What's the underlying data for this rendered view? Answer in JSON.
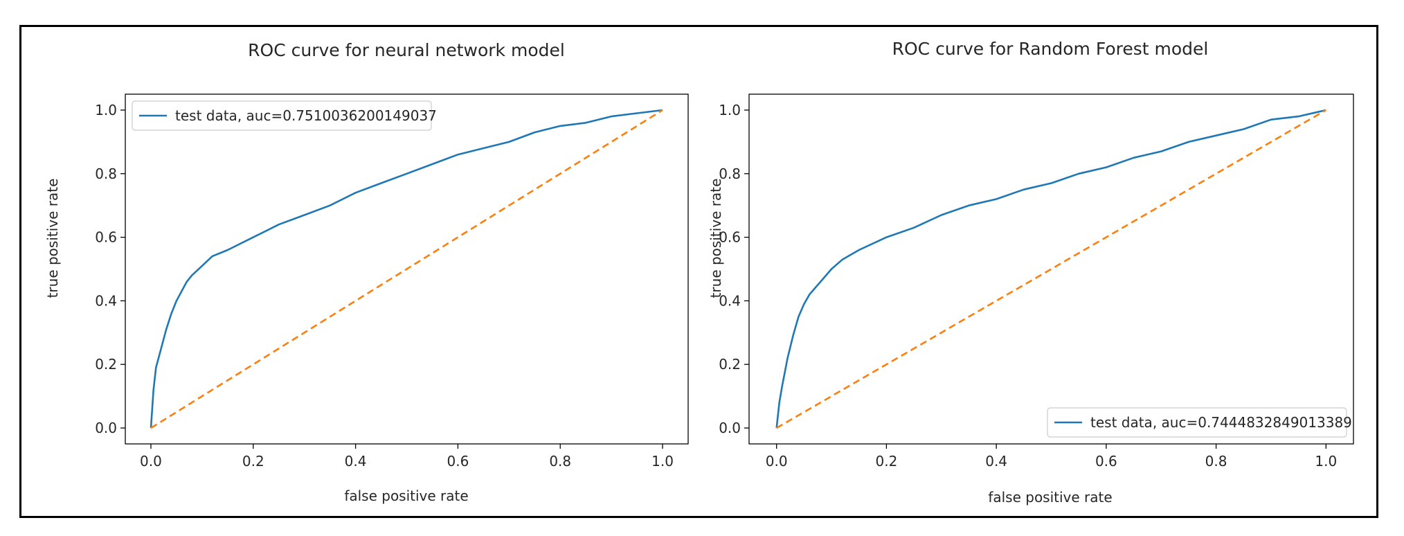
{
  "chart_data": [
    {
      "type": "line",
      "title": "ROC curve for neural network model",
      "xlabel": "false positive rate",
      "ylabel": "true positive rate",
      "xlim": [
        -0.05,
        1.05
      ],
      "ylim": [
        -0.05,
        1.05
      ],
      "xticks": [
        "0.0",
        "0.2",
        "0.4",
        "0.6",
        "0.8",
        "1.0"
      ],
      "yticks": [
        "0.0",
        "0.2",
        "0.4",
        "0.6",
        "0.8",
        "1.0"
      ],
      "grid": false,
      "legend_position": "upper left",
      "colors": {
        "roc": "#1f77b4",
        "diagonal": "#ff7f0e"
      },
      "series": [
        {
          "name": "test data, auc=0.7510036200149037",
          "x": [
            0.0,
            0.005,
            0.01,
            0.02,
            0.03,
            0.04,
            0.05,
            0.06,
            0.07,
            0.08,
            0.1,
            0.12,
            0.15,
            0.2,
            0.25,
            0.3,
            0.35,
            0.4,
            0.45,
            0.5,
            0.55,
            0.6,
            0.65,
            0.7,
            0.75,
            0.8,
            0.85,
            0.9,
            0.95,
            1.0
          ],
          "y": [
            0.0,
            0.12,
            0.19,
            0.25,
            0.31,
            0.36,
            0.4,
            0.43,
            0.46,
            0.48,
            0.51,
            0.54,
            0.56,
            0.6,
            0.64,
            0.67,
            0.7,
            0.74,
            0.77,
            0.8,
            0.83,
            0.86,
            0.88,
            0.9,
            0.93,
            0.95,
            0.96,
            0.98,
            0.99,
            1.0
          ]
        },
        {
          "x": [
            0.0,
            1.0
          ],
          "y": [
            0.0,
            1.0
          ],
          "dashed": true
        }
      ]
    },
    {
      "type": "line",
      "title": "ROC curve for Random Forest model",
      "xlabel": "false positive rate",
      "ylabel": "true positive rate",
      "xlim": [
        -0.05,
        1.05
      ],
      "ylim": [
        -0.05,
        1.05
      ],
      "xticks": [
        "0.0",
        "0.2",
        "0.4",
        "0.6",
        "0.8",
        "1.0"
      ],
      "yticks": [
        "0.0",
        "0.2",
        "0.4",
        "0.6",
        "0.8",
        "1.0"
      ],
      "grid": false,
      "legend_position": "lower right",
      "colors": {
        "roc": "#1f77b4",
        "diagonal": "#ff7f0e"
      },
      "series": [
        {
          "name": "test data, auc=0.7444832849013389",
          "x": [
            0.0,
            0.005,
            0.01,
            0.02,
            0.03,
            0.04,
            0.05,
            0.06,
            0.07,
            0.08,
            0.1,
            0.12,
            0.15,
            0.2,
            0.25,
            0.3,
            0.35,
            0.4,
            0.45,
            0.5,
            0.55,
            0.6,
            0.65,
            0.7,
            0.75,
            0.8,
            0.85,
            0.9,
            0.95,
            1.0
          ],
          "y": [
            0.0,
            0.08,
            0.13,
            0.22,
            0.29,
            0.35,
            0.39,
            0.42,
            0.44,
            0.46,
            0.5,
            0.53,
            0.56,
            0.6,
            0.63,
            0.67,
            0.7,
            0.72,
            0.75,
            0.77,
            0.8,
            0.82,
            0.85,
            0.87,
            0.9,
            0.92,
            0.94,
            0.97,
            0.98,
            1.0
          ]
        },
        {
          "x": [
            0.0,
            1.0
          ],
          "y": [
            0.0,
            1.0
          ],
          "dashed": true
        }
      ]
    }
  ]
}
